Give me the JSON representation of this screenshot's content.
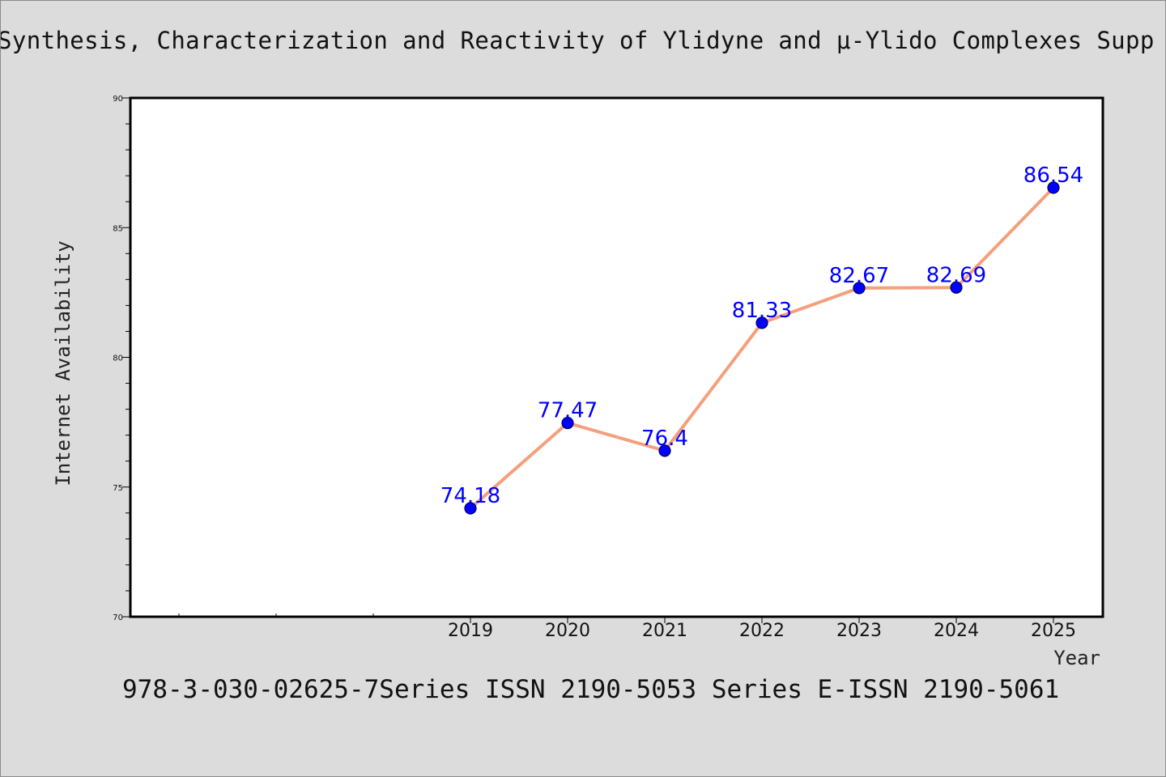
{
  "header": {
    "title": "Synthesis, Characterization and Reactivity of Ylidyne and μ-Ylido Complexes Supp"
  },
  "footer": {
    "text": "978-3-030-02625-7Series ISSN 2190-5053 Series E-ISSN 2190-5061"
  },
  "chart_data": {
    "type": "line",
    "title": "Synthesis, Characterization and Reactivity of Ylidyne and μ-Ylido Complexes Supp",
    "xlabel": "Year",
    "ylabel": "Internet Availability",
    "categories": [
      "2019",
      "2020",
      "2021",
      "2022",
      "2023",
      "2024",
      "2025"
    ],
    "series": [
      {
        "values": [
          74.18,
          77.47,
          76.4,
          81.33,
          82.67,
          82.69,
          86.54
        ]
      }
    ],
    "data_labels": [
      "74.18",
      "77.47",
      "76.4",
      "81.33",
      "82.67",
      "82.69",
      "86.54"
    ],
    "yticks": [
      "70",
      "75",
      "80",
      "85",
      "90"
    ],
    "ylim": [
      70,
      90
    ],
    "grid": false,
    "legend": "none",
    "colors": {
      "line": "#f4a07c",
      "marker": "#0000ff",
      "label": "#0000ff",
      "background": "#dcdcdc",
      "plot_bg": "#ffffff"
    }
  }
}
